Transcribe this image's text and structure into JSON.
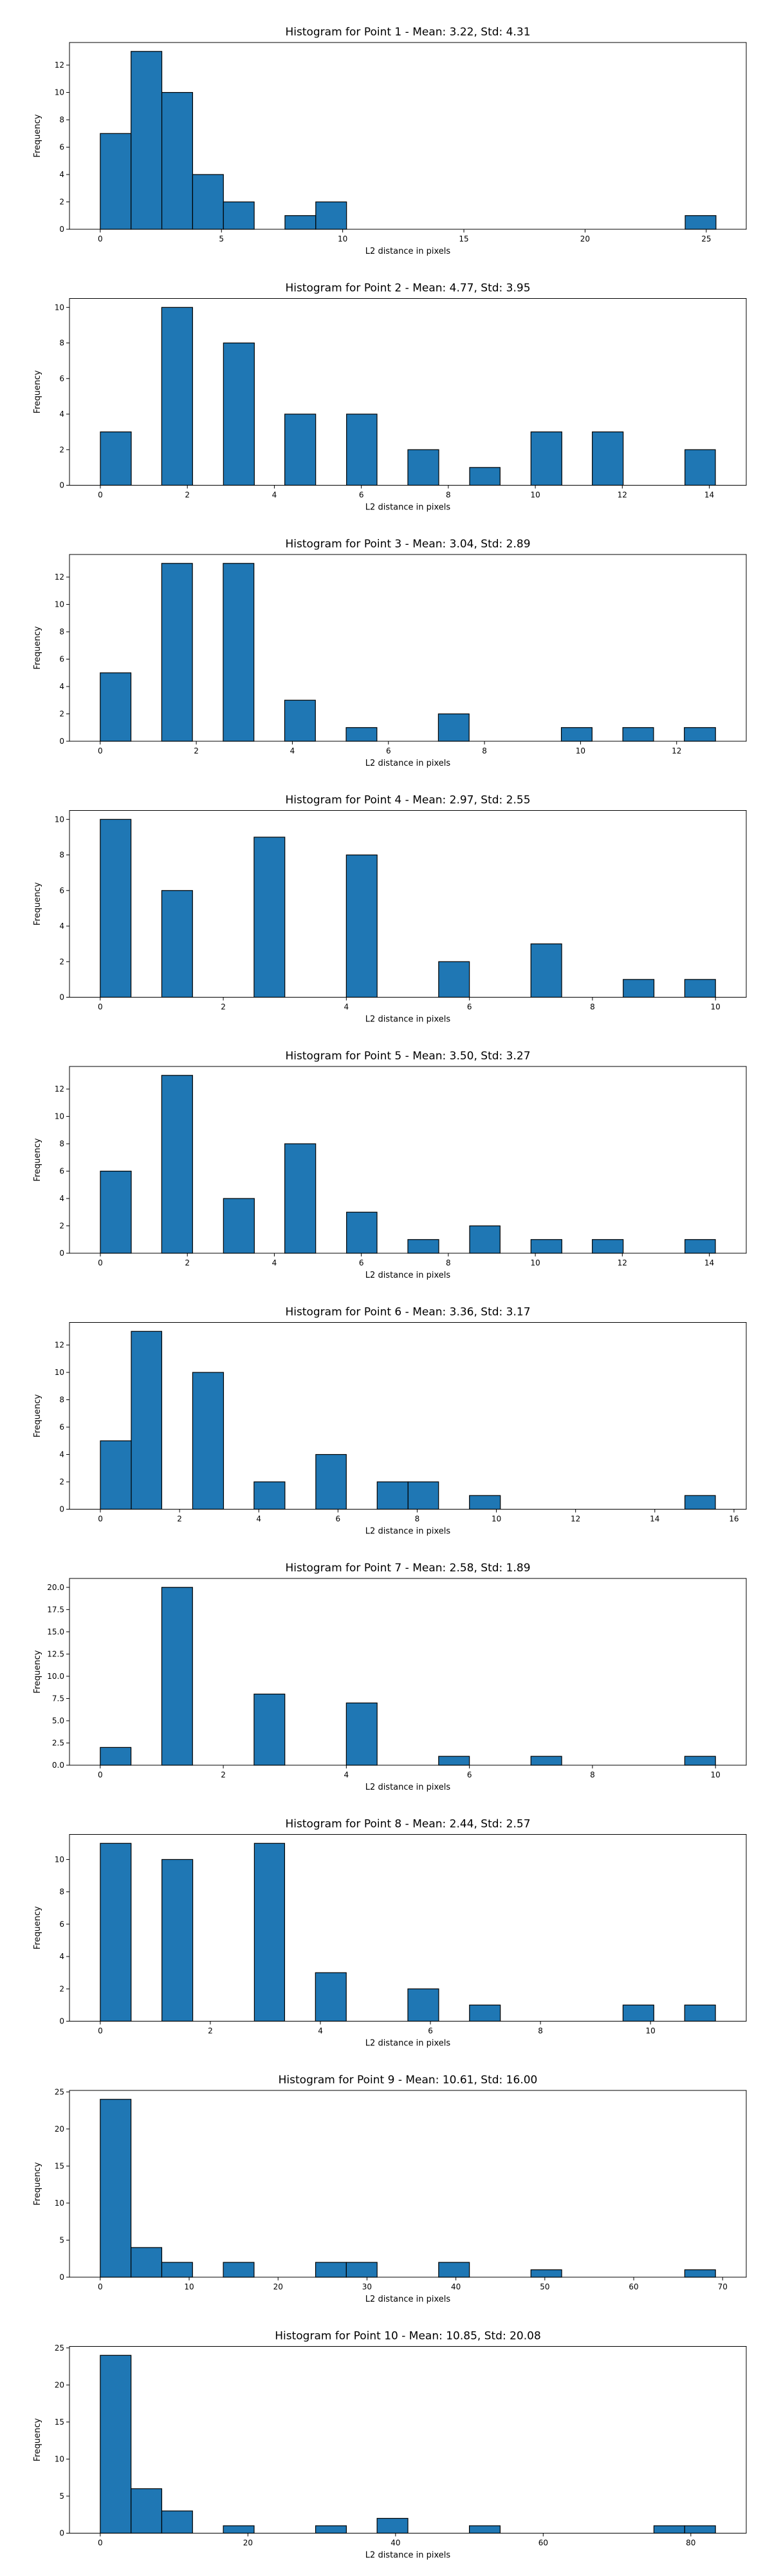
{
  "chart_data": [
    {
      "type": "bar",
      "title": "Histogram for Point 1 - Mean: 3.22, Std: 4.31",
      "xlabel": "L2 distance in pixels",
      "ylabel": "Frequency",
      "xlim": [
        -1.27,
        26.65
      ],
      "ylim": [
        0,
        13.65
      ],
      "xticks": [
        {
          "v": 0,
          "label": "0"
        },
        {
          "v": 5,
          "label": "5"
        },
        {
          "v": 10,
          "label": "10"
        },
        {
          "v": 15,
          "label": "15"
        },
        {
          "v": 20,
          "label": "20"
        },
        {
          "v": 25,
          "label": "25"
        }
      ],
      "yticks": [
        {
          "v": 0,
          "label": "0"
        },
        {
          "v": 2,
          "label": "2"
        },
        {
          "v": 4,
          "label": "4"
        },
        {
          "v": 6,
          "label": "6"
        },
        {
          "v": 8,
          "label": "8"
        },
        {
          "v": 10,
          "label": "10"
        },
        {
          "v": 12,
          "label": "12"
        }
      ],
      "bars": [
        {
          "x0": 0.0,
          "x1": 1.27,
          "value": 7
        },
        {
          "x0": 1.27,
          "x1": 2.54,
          "value": 13
        },
        {
          "x0": 2.54,
          "x1": 3.81,
          "value": 10
        },
        {
          "x0": 3.81,
          "x1": 5.08,
          "value": 4
        },
        {
          "x0": 5.08,
          "x1": 6.35,
          "value": 2
        },
        {
          "x0": 7.62,
          "x1": 8.89,
          "value": 1
        },
        {
          "x0": 8.89,
          "x1": 10.16,
          "value": 2
        },
        {
          "x0": 24.13,
          "x1": 25.4,
          "value": 1
        }
      ]
    },
    {
      "type": "bar",
      "title": "Histogram for Point 2 - Mean: 4.77, Std: 3.95",
      "xlabel": "L2 distance in pixels",
      "ylabel": "Frequency",
      "xlim": [
        -0.71,
        14.85
      ],
      "ylim": [
        0,
        10.5
      ],
      "xticks": [
        {
          "v": 0,
          "label": "0"
        },
        {
          "v": 2,
          "label": "2"
        },
        {
          "v": 4,
          "label": "4"
        },
        {
          "v": 6,
          "label": "6"
        },
        {
          "v": 8,
          "label": "8"
        },
        {
          "v": 10,
          "label": "10"
        },
        {
          "v": 12,
          "label": "12"
        },
        {
          "v": 14,
          "label": "14"
        }
      ],
      "yticks": [
        {
          "v": 0,
          "label": "0"
        },
        {
          "v": 2,
          "label": "2"
        },
        {
          "v": 4,
          "label": "4"
        },
        {
          "v": 6,
          "label": "6"
        },
        {
          "v": 8,
          "label": "8"
        },
        {
          "v": 10,
          "label": "10"
        }
      ],
      "bars": [
        {
          "x0": 0.0,
          "x1": 0.71,
          "value": 3
        },
        {
          "x0": 1.41,
          "x1": 2.12,
          "value": 10
        },
        {
          "x0": 2.83,
          "x1": 3.54,
          "value": 8
        },
        {
          "x0": 4.24,
          "x1": 4.95,
          "value": 4
        },
        {
          "x0": 5.66,
          "x1": 6.36,
          "value": 4
        },
        {
          "x0": 7.07,
          "x1": 7.78,
          "value": 2
        },
        {
          "x0": 8.49,
          "x1": 9.19,
          "value": 1
        },
        {
          "x0": 9.9,
          "x1": 10.61,
          "value": 3
        },
        {
          "x0": 11.31,
          "x1": 12.02,
          "value": 3
        },
        {
          "x0": 13.44,
          "x1": 14.14,
          "value": 2
        }
      ]
    },
    {
      "type": "bar",
      "title": "Histogram for Point 3 - Mean: 3.04, Std: 2.89",
      "xlabel": "L2 distance in pixels",
      "ylabel": "Frequency",
      "xlim": [
        -0.64,
        13.45
      ],
      "ylim": [
        0,
        13.65
      ],
      "xticks": [
        {
          "v": 0,
          "label": "0"
        },
        {
          "v": 2,
          "label": "2"
        },
        {
          "v": 4,
          "label": "4"
        },
        {
          "v": 6,
          "label": "6"
        },
        {
          "v": 8,
          "label": "8"
        },
        {
          "v": 10,
          "label": "10"
        },
        {
          "v": 12,
          "label": "12"
        }
      ],
      "yticks": [
        {
          "v": 0,
          "label": "0"
        },
        {
          "v": 2,
          "label": "2"
        },
        {
          "v": 4,
          "label": "4"
        },
        {
          "v": 6,
          "label": "6"
        },
        {
          "v": 8,
          "label": "8"
        },
        {
          "v": 10,
          "label": "10"
        },
        {
          "v": 12,
          "label": "12"
        }
      ],
      "bars": [
        {
          "x0": 0.0,
          "x1": 0.64,
          "value": 5
        },
        {
          "x0": 1.28,
          "x1": 1.92,
          "value": 13
        },
        {
          "x0": 2.56,
          "x1": 3.2,
          "value": 13
        },
        {
          "x0": 3.84,
          "x1": 4.48,
          "value": 3
        },
        {
          "x0": 5.12,
          "x1": 5.76,
          "value": 1
        },
        {
          "x0": 7.04,
          "x1": 7.68,
          "value": 2
        },
        {
          "x0": 9.6,
          "x1": 10.24,
          "value": 1
        },
        {
          "x0": 10.88,
          "x1": 11.52,
          "value": 1
        },
        {
          "x0": 12.16,
          "x1": 12.81,
          "value": 1
        }
      ]
    },
    {
      "type": "bar",
      "title": "Histogram for Point 4 - Mean: 2.97, Std: 2.55",
      "xlabel": "L2 distance in pixels",
      "ylabel": "Frequency",
      "xlim": [
        -0.5,
        10.5
      ],
      "ylim": [
        0,
        10.5
      ],
      "xticks": [
        {
          "v": 0,
          "label": "0"
        },
        {
          "v": 2,
          "label": "2"
        },
        {
          "v": 4,
          "label": "4"
        },
        {
          "v": 6,
          "label": "6"
        },
        {
          "v": 8,
          "label": "8"
        },
        {
          "v": 10,
          "label": "10"
        }
      ],
      "yticks": [
        {
          "v": 0,
          "label": "0"
        },
        {
          "v": 2,
          "label": "2"
        },
        {
          "v": 4,
          "label": "4"
        },
        {
          "v": 6,
          "label": "6"
        },
        {
          "v": 8,
          "label": "8"
        },
        {
          "v": 10,
          "label": "10"
        }
      ],
      "bars": [
        {
          "x0": 0.0,
          "x1": 0.5,
          "value": 10
        },
        {
          "x0": 1.0,
          "x1": 1.5,
          "value": 6
        },
        {
          "x0": 2.5,
          "x1": 3.0,
          "value": 9
        },
        {
          "x0": 4.0,
          "x1": 4.5,
          "value": 8
        },
        {
          "x0": 5.5,
          "x1": 6.0,
          "value": 2
        },
        {
          "x0": 7.0,
          "x1": 7.5,
          "value": 3
        },
        {
          "x0": 8.5,
          "x1": 9.0,
          "value": 1
        },
        {
          "x0": 9.5,
          "x1": 10.0,
          "value": 1
        }
      ]
    },
    {
      "type": "bar",
      "title": "Histogram for Point 5 - Mean: 3.50, Std: 3.27",
      "xlabel": "L2 distance in pixels",
      "ylabel": "Frequency",
      "xlim": [
        -0.71,
        14.85
      ],
      "ylim": [
        0,
        13.65
      ],
      "xticks": [
        {
          "v": 0,
          "label": "0"
        },
        {
          "v": 2,
          "label": "2"
        },
        {
          "v": 4,
          "label": "4"
        },
        {
          "v": 6,
          "label": "6"
        },
        {
          "v": 8,
          "label": "8"
        },
        {
          "v": 10,
          "label": "10"
        },
        {
          "v": 12,
          "label": "12"
        },
        {
          "v": 14,
          "label": "14"
        }
      ],
      "yticks": [
        {
          "v": 0,
          "label": "0"
        },
        {
          "v": 2,
          "label": "2"
        },
        {
          "v": 4,
          "label": "4"
        },
        {
          "v": 6,
          "label": "6"
        },
        {
          "v": 8,
          "label": "8"
        },
        {
          "v": 10,
          "label": "10"
        },
        {
          "v": 12,
          "label": "12"
        }
      ],
      "bars": [
        {
          "x0": 0.0,
          "x1": 0.71,
          "value": 6
        },
        {
          "x0": 1.41,
          "x1": 2.12,
          "value": 13
        },
        {
          "x0": 2.83,
          "x1": 3.54,
          "value": 4
        },
        {
          "x0": 4.24,
          "x1": 4.95,
          "value": 8
        },
        {
          "x0": 5.66,
          "x1": 6.36,
          "value": 3
        },
        {
          "x0": 7.07,
          "x1": 7.78,
          "value": 1
        },
        {
          "x0": 8.49,
          "x1": 9.19,
          "value": 2
        },
        {
          "x0": 9.9,
          "x1": 10.61,
          "value": 1
        },
        {
          "x0": 11.31,
          "x1": 12.02,
          "value": 1
        },
        {
          "x0": 13.44,
          "x1": 14.14,
          "value": 1
        }
      ]
    },
    {
      "type": "bar",
      "title": "Histogram for Point 6 - Mean: 3.36, Std: 3.17",
      "xlabel": "L2 distance in pixels",
      "ylabel": "Frequency",
      "xlim": [
        -0.78,
        16.31
      ],
      "ylim": [
        0,
        13.65
      ],
      "xticks": [
        {
          "v": 0,
          "label": "0"
        },
        {
          "v": 2,
          "label": "2"
        },
        {
          "v": 4,
          "label": "4"
        },
        {
          "v": 6,
          "label": "6"
        },
        {
          "v": 8,
          "label": "8"
        },
        {
          "v": 10,
          "label": "10"
        },
        {
          "v": 12,
          "label": "12"
        },
        {
          "v": 14,
          "label": "14"
        },
        {
          "v": 16,
          "label": "16"
        }
      ],
      "yticks": [
        {
          "v": 0,
          "label": "0"
        },
        {
          "v": 2,
          "label": "2"
        },
        {
          "v": 4,
          "label": "4"
        },
        {
          "v": 6,
          "label": "6"
        },
        {
          "v": 8,
          "label": "8"
        },
        {
          "v": 10,
          "label": "10"
        },
        {
          "v": 12,
          "label": "12"
        }
      ],
      "bars": [
        {
          "x0": 0.0,
          "x1": 0.78,
          "value": 5
        },
        {
          "x0": 0.78,
          "x1": 1.55,
          "value": 13
        },
        {
          "x0": 2.33,
          "x1": 3.11,
          "value": 10
        },
        {
          "x0": 3.88,
          "x1": 4.66,
          "value": 2
        },
        {
          "x0": 5.44,
          "x1": 6.21,
          "value": 4
        },
        {
          "x0": 6.99,
          "x1": 7.77,
          "value": 2
        },
        {
          "x0": 7.77,
          "x1": 8.54,
          "value": 2
        },
        {
          "x0": 9.32,
          "x1": 10.1,
          "value": 1
        },
        {
          "x0": 14.76,
          "x1": 15.53,
          "value": 1
        }
      ]
    },
    {
      "type": "bar",
      "title": "Histogram for Point 7 - Mean: 2.58, Std: 1.89",
      "xlabel": "L2 distance in pixels",
      "ylabel": "Frequency",
      "xlim": [
        -0.5,
        10.5
      ],
      "ylim": [
        0,
        21.0
      ],
      "xticks": [
        {
          "v": 0,
          "label": "0"
        },
        {
          "v": 2,
          "label": "2"
        },
        {
          "v": 4,
          "label": "4"
        },
        {
          "v": 6,
          "label": "6"
        },
        {
          "v": 8,
          "label": "8"
        },
        {
          "v": 10,
          "label": "10"
        }
      ],
      "yticks": [
        {
          "v": 0,
          "label": "0.0"
        },
        {
          "v": 2.5,
          "label": "2.5"
        },
        {
          "v": 5,
          "label": "5.0"
        },
        {
          "v": 7.5,
          "label": "7.5"
        },
        {
          "v": 10,
          "label": "10.0"
        },
        {
          "v": 12.5,
          "label": "12.5"
        },
        {
          "v": 15,
          "label": "15.0"
        },
        {
          "v": 17.5,
          "label": "17.5"
        },
        {
          "v": 20,
          "label": "20.0"
        }
      ],
      "bars": [
        {
          "x0": 0.0,
          "x1": 0.5,
          "value": 2
        },
        {
          "x0": 1.0,
          "x1": 1.5,
          "value": 20
        },
        {
          "x0": 2.5,
          "x1": 3.0,
          "value": 8
        },
        {
          "x0": 4.0,
          "x1": 4.5,
          "value": 7
        },
        {
          "x0": 5.5,
          "x1": 6.0,
          "value": 1
        },
        {
          "x0": 7.0,
          "x1": 7.5,
          "value": 1
        },
        {
          "x0": 9.5,
          "x1": 10.0,
          "value": 1
        }
      ]
    },
    {
      "type": "bar",
      "title": "Histogram for Point 8 - Mean: 2.44, Std: 2.57",
      "xlabel": "L2 distance in pixels",
      "ylabel": "Frequency",
      "xlim": [
        -0.56,
        11.74
      ],
      "ylim": [
        0,
        11.55
      ],
      "xticks": [
        {
          "v": 0,
          "label": "0"
        },
        {
          "v": 2,
          "label": "2"
        },
        {
          "v": 4,
          "label": "4"
        },
        {
          "v": 6,
          "label": "6"
        },
        {
          "v": 8,
          "label": "8"
        },
        {
          "v": 10,
          "label": "10"
        }
      ],
      "yticks": [
        {
          "v": 0,
          "label": "0"
        },
        {
          "v": 2,
          "label": "2"
        },
        {
          "v": 4,
          "label": "4"
        },
        {
          "v": 6,
          "label": "6"
        },
        {
          "v": 8,
          "label": "8"
        },
        {
          "v": 10,
          "label": "10"
        }
      ],
      "bars": [
        {
          "x0": 0.0,
          "x1": 0.56,
          "value": 11
        },
        {
          "x0": 1.12,
          "x1": 1.68,
          "value": 10
        },
        {
          "x0": 2.8,
          "x1": 3.35,
          "value": 11
        },
        {
          "x0": 3.91,
          "x1": 4.47,
          "value": 3
        },
        {
          "x0": 5.59,
          "x1": 6.15,
          "value": 2
        },
        {
          "x0": 6.71,
          "x1": 7.27,
          "value": 1
        },
        {
          "x0": 9.5,
          "x1": 10.06,
          "value": 1
        },
        {
          "x0": 10.62,
          "x1": 11.18,
          "value": 1
        }
      ]
    },
    {
      "type": "bar",
      "title": "Histogram for Point 9 - Mean: 10.61, Std: 16.00",
      "xlabel": "L2 distance in pixels",
      "ylabel": "Frequency",
      "xlim": [
        -3.46,
        72.66
      ],
      "ylim": [
        0,
        25.2
      ],
      "xticks": [
        {
          "v": 0,
          "label": "0"
        },
        {
          "v": 10,
          "label": "10"
        },
        {
          "v": 20,
          "label": "20"
        },
        {
          "v": 30,
          "label": "30"
        },
        {
          "v": 40,
          "label": "40"
        },
        {
          "v": 50,
          "label": "50"
        },
        {
          "v": 60,
          "label": "60"
        },
        {
          "v": 70,
          "label": "70"
        }
      ],
      "yticks": [
        {
          "v": 0,
          "label": "0"
        },
        {
          "v": 5,
          "label": "5"
        },
        {
          "v": 10,
          "label": "10"
        },
        {
          "v": 15,
          "label": "15"
        },
        {
          "v": 20,
          "label": "20"
        },
        {
          "v": 25,
          "label": "25"
        }
      ],
      "bars": [
        {
          "x0": 0.0,
          "x1": 3.46,
          "value": 24
        },
        {
          "x0": 3.46,
          "x1": 6.92,
          "value": 4
        },
        {
          "x0": 6.92,
          "x1": 10.38,
          "value": 2
        },
        {
          "x0": 13.84,
          "x1": 17.3,
          "value": 2
        },
        {
          "x0": 24.22,
          "x1": 27.68,
          "value": 2
        },
        {
          "x0": 27.68,
          "x1": 31.14,
          "value": 2
        },
        {
          "x0": 38.06,
          "x1": 41.52,
          "value": 2
        },
        {
          "x0": 48.44,
          "x1": 51.9,
          "value": 1
        },
        {
          "x0": 65.74,
          "x1": 69.2,
          "value": 1
        }
      ]
    },
    {
      "type": "bar",
      "title": "Histogram for Point 10 - Mean: 10.85, Std: 20.08",
      "xlabel": "L2 distance in pixels",
      "ylabel": "Frequency",
      "xlim": [
        -4.17,
        87.51
      ],
      "ylim": [
        0,
        25.2
      ],
      "xticks": [
        {
          "v": 0,
          "label": "0"
        },
        {
          "v": 20,
          "label": "20"
        },
        {
          "v": 40,
          "label": "40"
        },
        {
          "v": 60,
          "label": "60"
        },
        {
          "v": 80,
          "label": "80"
        }
      ],
      "yticks": [
        {
          "v": 0,
          "label": "0"
        },
        {
          "v": 5,
          "label": "5"
        },
        {
          "v": 10,
          "label": "10"
        },
        {
          "v": 15,
          "label": "15"
        },
        {
          "v": 20,
          "label": "20"
        },
        {
          "v": 25,
          "label": "25"
        }
      ],
      "bars": [
        {
          "x0": 0.0,
          "x1": 4.17,
          "value": 24
        },
        {
          "x0": 4.17,
          "x1": 8.33,
          "value": 6
        },
        {
          "x0": 8.33,
          "x1": 12.5,
          "value": 3
        },
        {
          "x0": 16.67,
          "x1": 20.84,
          "value": 1
        },
        {
          "x0": 29.17,
          "x1": 33.34,
          "value": 1
        },
        {
          "x0": 37.5,
          "x1": 41.67,
          "value": 2
        },
        {
          "x0": 50.0,
          "x1": 54.17,
          "value": 1
        },
        {
          "x0": 75.0,
          "x1": 79.17,
          "value": 1
        },
        {
          "x0": 79.17,
          "x1": 83.34,
          "value": 1
        }
      ]
    }
  ],
  "style": {
    "bar_fill": "#1f77b4",
    "bar_edge": "#000000",
    "axis_color": "#000000",
    "background": "#ffffff"
  }
}
